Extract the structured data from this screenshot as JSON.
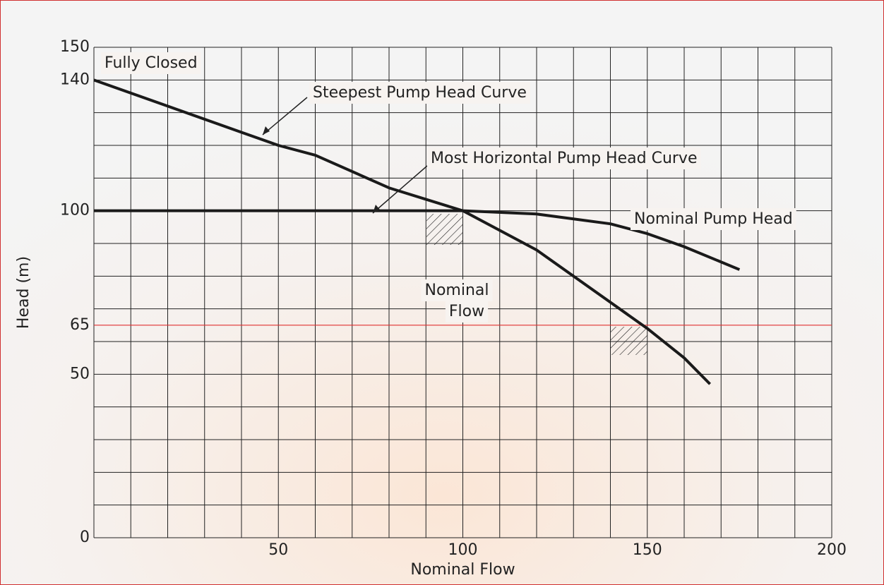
{
  "chart_data": {
    "type": "line",
    "xlabel": "Nominal Flow",
    "ylabel": "Head (m)",
    "xlim": [
      0,
      200
    ],
    "ylim": [
      0,
      150
    ],
    "xticks": [
      50,
      100,
      150,
      200
    ],
    "yticks": [
      0,
      50,
      65,
      100,
      140,
      150
    ],
    "xgrid": [
      0,
      10,
      20,
      30,
      40,
      50,
      60,
      70,
      80,
      90,
      100,
      110,
      120,
      130,
      140,
      150,
      160,
      170,
      180,
      190,
      200
    ],
    "ygrid": [
      0,
      10,
      20,
      30,
      40,
      50,
      60,
      70,
      80,
      90,
      100,
      110,
      120,
      130,
      140,
      150
    ],
    "grid": true,
    "hline": {
      "value": 65,
      "color": "#e03030"
    },
    "series": [
      {
        "name": "Steepest Pump Head Curve",
        "color": "#1a1a1a",
        "x": [
          0,
          20,
          40,
          50,
          60,
          80,
          100,
          120,
          140,
          150,
          160,
          167
        ],
        "values": [
          140,
          132,
          124,
          120,
          117,
          107,
          100,
          88,
          72,
          64,
          55,
          47
        ]
      },
      {
        "name": "Most Horizontal Pump Head Curve",
        "color": "#1a1a1a",
        "x": [
          0,
          100,
          120,
          140,
          150,
          160,
          175
        ],
        "values": [
          100,
          100,
          99,
          96,
          93,
          89,
          82
        ]
      }
    ],
    "annotations": {
      "fully_closed": "Fully Closed",
      "nominal_head": "Nominal Pump Head",
      "nominal_flow": [
        "Nominal",
        "Flow"
      ]
    }
  }
}
